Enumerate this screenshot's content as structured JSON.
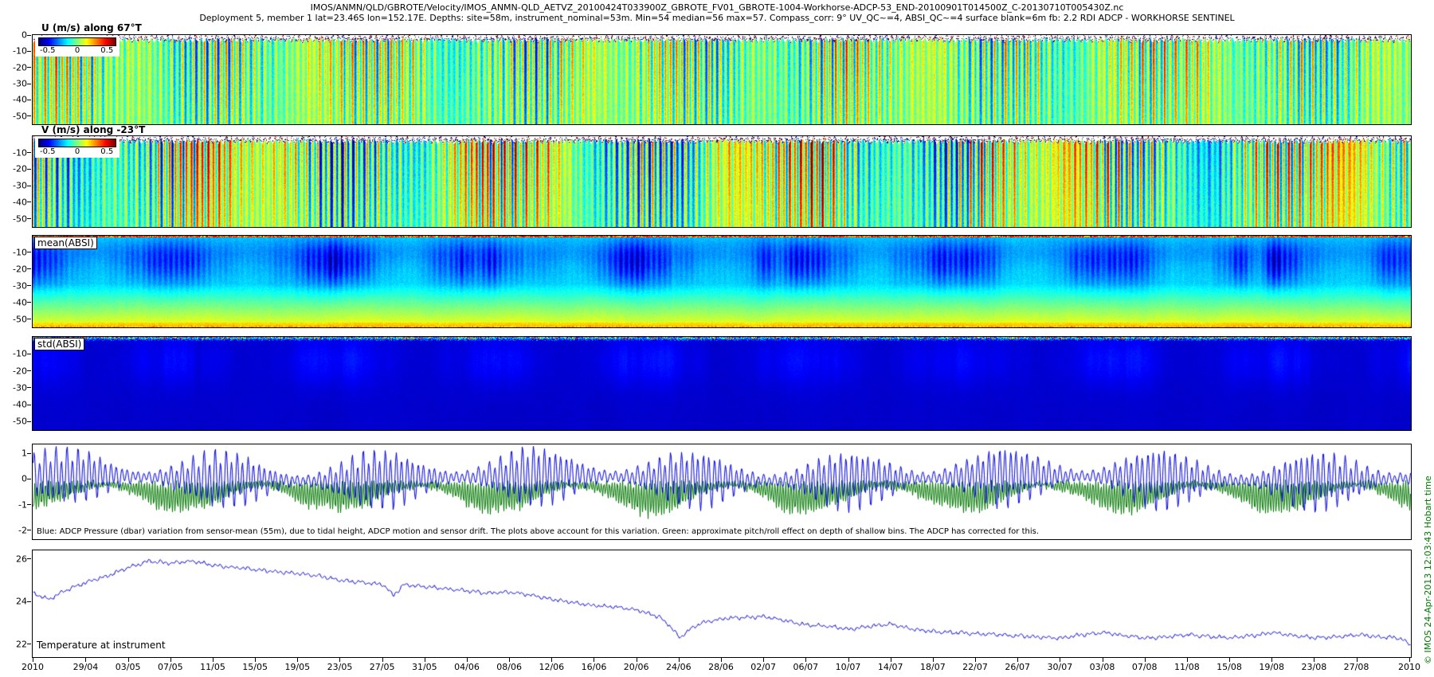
{
  "header": {
    "line1": "IMOS/ANMN/QLD/GBROTE/Velocity/IMOS_ANMN-QLD_AETVZ_20100424T033900Z_GBROTE_FV01_GBROTE-1004-Workhorse-ADCP-53_END-20100901T014500Z_C-20130710T005430Z.nc",
    "line2": "Deployment 5, member 1 lat=23.46S lon=152.17E. Depths: site=58m, instrument_nominal=53m. Min=54 median=56 max=57. Compass_corr: 9° UV_QC~=4, ABSI_QC~=4 surface blank=6m fb: 2.2 RDI ADCP - WORKHORSE SENTINEL"
  },
  "watermark": "© IMOS 24-Apr-2013 12:03:43 Hobart time",
  "xaxis": {
    "year_label": "2010",
    "total_days": 130,
    "start_date": "24/04/2010",
    "end_date": "01/09/2010",
    "tick_days": [
      5,
      9,
      13,
      17,
      21,
      25,
      29,
      33,
      37,
      41,
      45,
      49,
      53,
      57,
      61,
      65,
      69,
      73,
      77,
      81,
      85,
      89,
      93,
      97,
      101,
      105,
      109,
      113,
      117,
      121,
      125
    ],
    "tick_labels": [
      "29/04",
      "03/05",
      "07/05",
      "11/05",
      "15/05",
      "19/05",
      "23/05",
      "27/05",
      "31/05",
      "04/06",
      "08/06",
      "12/06",
      "16/06",
      "20/06",
      "24/06",
      "28/06",
      "02/07",
      "06/07",
      "10/07",
      "14/07",
      "18/07",
      "22/07",
      "26/07",
      "30/07",
      "03/08",
      "07/08",
      "11/08",
      "15/08",
      "19/08",
      "23/08",
      "27/08"
    ]
  },
  "chart_data": [
    {
      "id": "u_velocity",
      "type": "heatmap",
      "title": "U (m/s) along 67°T",
      "ylim": [
        -55,
        0
      ],
      "yticks": [
        0,
        -10,
        -20,
        -30,
        -40,
        -50
      ],
      "colorbar": {
        "cmap": "jet",
        "clim": [
          -0.65,
          0.65
        ],
        "tick_labels": [
          "-0.5",
          "0",
          "0.5"
        ]
      },
      "content": "Eastward-rotated velocity component; semidiurnal tidal striping mostly near 0 m/s (green) with spring-tide bursts to ±0.5 m/s; white surface-blank band at top",
      "render": {
        "seed": 7,
        "amp": 0.34,
        "ph": 0.0,
        "sph": 0.4,
        "lowA": 0.06,
        "lowB": 0.05,
        "lowN": 0.12
      }
    },
    {
      "id": "v_velocity",
      "type": "heatmap",
      "title": "V (m/s) along -23°T",
      "ylim": [
        -55,
        0
      ],
      "yticks": [
        -10,
        -20,
        -30,
        -40,
        -50
      ],
      "colorbar": {
        "cmap": "jet",
        "clim": [
          -0.65,
          0.65
        ],
        "tick_labels": [
          "-0.5",
          "0",
          "0.5"
        ]
      },
      "content": "Northward-rotated velocity component; stronger low-frequency yellow/orange episodes (to +0.5 m/s) superimposed on tidal striping",
      "render": {
        "seed": 19,
        "amp": 0.42,
        "ph": 2.1,
        "sph": 1.7,
        "lowA": 0.16,
        "lowB": 0.07,
        "lowN": 0.22
      }
    },
    {
      "id": "mean_absi",
      "type": "heatmap",
      "title": "mean(ABSI)",
      "ylim": [
        -55,
        0
      ],
      "yticks": [
        -10,
        -20,
        -30,
        -40,
        -50
      ],
      "cmap": "jet",
      "content": "Mean acoustic backscatter: red/yellow speckle at surface, episodic dark-blue low-backscatter blobs in upper-mid water column over cyan background, green to yellow-green near seabed",
      "render": {
        "seed": 33
      }
    },
    {
      "id": "std_absi",
      "type": "heatmap",
      "title": "std(ABSI)",
      "ylim": [
        -55,
        0
      ],
      "yticks": [
        -10,
        -20,
        -30,
        -40,
        -50
      ],
      "cmap": "jet",
      "content": "Std of acoustic backscatter: mostly near zero (dark navy) with colorful speckled surface line and faint brighter vertical streaks",
      "render": {
        "seed": 51
      }
    },
    {
      "id": "pressure_variation",
      "type": "line",
      "ylim": [
        -2.35,
        1.35
      ],
      "yticks": [
        1,
        0,
        -1,
        -2
      ],
      "annotation": "Blue: ADCP Pressure (dbar) variation from sensor-mean (55m), due to tidal height, ADCP motion and sensor drift. The plots above account for this variation. Green: approximate pitch/roll effect on depth of shallow bins. The ADCP has corrected for this.",
      "series": [
        {
          "name": "adcp_pressure_variation_dbar",
          "color": "#0000dd",
          "tidal_period_hours": 12.42,
          "springneap_period_days": 14.77,
          "amplitude_range_dbar": [
            0.2,
            1.3
          ]
        },
        {
          "name": "pitch_roll_depth_effect",
          "color": "#007700",
          "value_range": [
            -2,
            0
          ]
        }
      ],
      "render": {
        "seed": 77
      }
    },
    {
      "id": "temperature",
      "type": "line",
      "label": "Temperature at instrument",
      "ylim": [
        21.4,
        26.4
      ],
      "yticks": [
        26,
        24,
        22
      ],
      "series": [
        {
          "name": "temperature_degC",
          "color": "#0000cc",
          "x_days": [
            0,
            1.5,
            3,
            5,
            7,
            9,
            11,
            13,
            15,
            17,
            19,
            21,
            23,
            25,
            27,
            29,
            31,
            33,
            34,
            35,
            37,
            39,
            41,
            43,
            45,
            47,
            49,
            51,
            53,
            55,
            57,
            59,
            60,
            61,
            62,
            63,
            65,
            67,
            69,
            71,
            73,
            75,
            77,
            79,
            81,
            83,
            85,
            87,
            89,
            91,
            93,
            95,
            97,
            99,
            101,
            103,
            105,
            107,
            109,
            111,
            113,
            115,
            117,
            119,
            121,
            123,
            125,
            127,
            129,
            130
          ],
          "y_degc": [
            24.4,
            24.1,
            24.5,
            24.9,
            25.2,
            25.6,
            25.9,
            25.8,
            25.9,
            25.7,
            25.6,
            25.5,
            25.4,
            25.3,
            25.2,
            25.0,
            24.9,
            24.8,
            24.3,
            24.8,
            24.7,
            24.6,
            24.5,
            24.4,
            24.45,
            24.3,
            24.1,
            23.95,
            23.8,
            23.75,
            23.6,
            23.3,
            22.9,
            22.3,
            22.7,
            23.0,
            23.2,
            23.25,
            23.3,
            23.1,
            22.9,
            22.85,
            22.7,
            22.85,
            22.95,
            22.7,
            22.6,
            22.55,
            22.5,
            22.45,
            22.4,
            22.35,
            22.3,
            22.45,
            22.55,
            22.4,
            22.3,
            22.35,
            22.45,
            22.35,
            22.3,
            22.4,
            22.55,
            22.4,
            22.3,
            22.35,
            22.45,
            22.35,
            22.3,
            21.9
          ]
        }
      ],
      "render": {
        "seed": 91
      }
    }
  ]
}
